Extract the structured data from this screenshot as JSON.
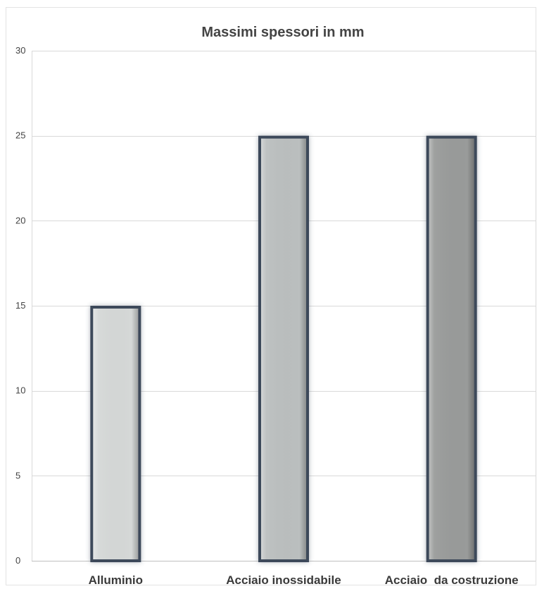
{
  "chart_data": {
    "type": "bar",
    "title": "Massimi spessori in mm",
    "xlabel": "",
    "ylabel": "",
    "categories": [
      "Alluminio",
      "Acciaio inossidabile",
      "Acciaio  da costruzione"
    ],
    "values": [
      15,
      25,
      25
    ],
    "ylim": [
      0,
      30
    ],
    "yticks": [
      0,
      5,
      10,
      15,
      20,
      25,
      30
    ],
    "grid": true,
    "legend": "none",
    "colors": {
      "bar_fills": [
        "#d5d8d7",
        "#bbbfbf",
        "#999b9a"
      ],
      "bar_border": "#3e4a5a",
      "gridline": "#d9d9d9",
      "axis": "#bfbfbf"
    }
  }
}
